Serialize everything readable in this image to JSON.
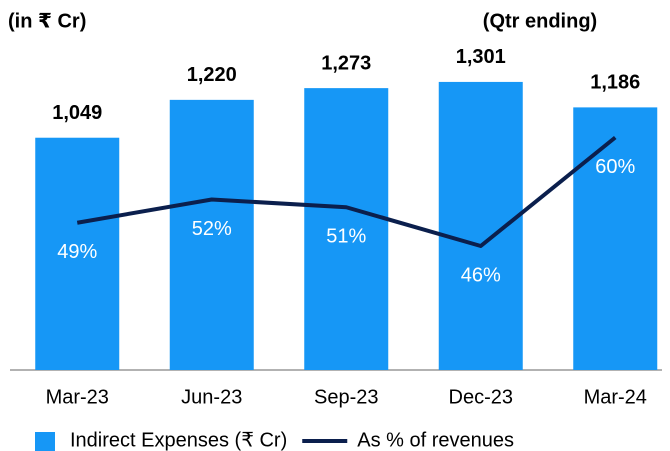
{
  "chart_data": {
    "type": "bar_line",
    "y_label": "(in ₹ Cr)",
    "annotation": "(Qtr ending)",
    "categories": [
      "Mar-23",
      "Jun-23",
      "Sep-23",
      "Dec-23",
      "Mar-24"
    ],
    "series": [
      {
        "name": "Indirect Expenses (₹ Cr)",
        "type": "bar",
        "color": "#1697f6",
        "values": [
          1049,
          1220,
          1273,
          1301,
          1186
        ],
        "value_labels": [
          "1,049",
          "1,220",
          "1,273",
          "1,301",
          "1,186"
        ]
      },
      {
        "name": "As % of revenues",
        "type": "line",
        "axis": "y2",
        "color": "#0b1f4d",
        "values": [
          49,
          52,
          51,
          46,
          60
        ],
        "value_labels": [
          "49%",
          "52%",
          "51%",
          "46%",
          "60%"
        ]
      }
    ],
    "ylim": [
      0,
      1400
    ],
    "y2lim": [
      30,
      70
    ]
  }
}
